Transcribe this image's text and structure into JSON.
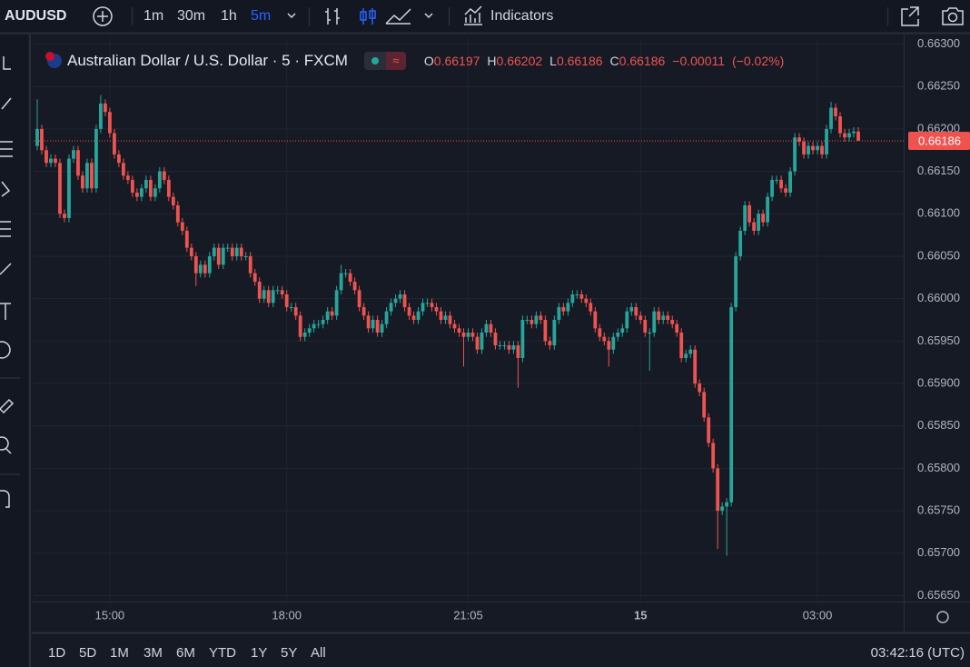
{
  "toolbar": {
    "symbol": "AUDUSD",
    "intervals": [
      "1m",
      "30m",
      "1h",
      "5m"
    ],
    "indicators": "Indicators"
  },
  "chart_data": {
    "type": "candlestick",
    "title": "Australian Dollar / U.S. Dollar · 5 · FXCM",
    "ohlc_labels": [
      "O",
      "H",
      "L",
      "C"
    ],
    "change": "−0.00011",
    "change_pct": "(−0.02%)",
    "up_color": "#26a69a",
    "down_color": "#ef5350",
    "grid": true,
    "categories": [
      null,
      null,
      null,
      null,
      null,
      null,
      null,
      null,
      null,
      null,
      null,
      null,
      null,
      null,
      null,
      null,
      "15:00",
      null,
      null,
      null,
      null,
      null,
      null,
      null,
      null,
      null,
      null,
      null,
      null,
      null,
      null,
      null,
      null,
      null,
      null,
      null,
      null,
      null,
      null,
      null,
      null,
      null,
      null,
      null,
      null,
      null,
      null,
      null,
      null,
      null,
      null,
      null,
      null,
      null,
      null,
      "18:00",
      null,
      null,
      null,
      null,
      null,
      null,
      null,
      null,
      null,
      null,
      null,
      null,
      null,
      null,
      null,
      null,
      null,
      null,
      null,
      null,
      null,
      null,
      null,
      null,
      null,
      null,
      null,
      null,
      null,
      null,
      null,
      null,
      null,
      null,
      null,
      null,
      null,
      null,
      null,
      "21:05",
      null,
      null,
      null,
      null,
      null,
      null,
      null,
      null,
      null,
      null,
      null,
      null,
      null,
      null,
      null,
      null,
      null,
      null,
      null,
      null,
      null,
      null,
      null,
      null,
      null,
      null,
      null,
      null,
      null,
      null,
      null,
      null,
      null,
      null,
      null,
      null,
      null,
      "15",
      null,
      null,
      null,
      null,
      null,
      null,
      null,
      null,
      null,
      null,
      null,
      null,
      null,
      null,
      null,
      null,
      null,
      null,
      null,
      null,
      null,
      null,
      null,
      null,
      null,
      null,
      null,
      null,
      null,
      null,
      null,
      null,
      null,
      null,
      null,
      null,
      null,
      null,
      "03:00",
      null,
      null,
      null,
      null,
      null,
      null,
      null,
      null,
      null
    ],
    "open": [
      0.6618,
      0.662,
      0.66175,
      0.6616,
      0.66165,
      0.6616,
      0.661,
      0.66095,
      0.66165,
      0.66175,
      0.66145,
      0.6613,
      0.6616,
      0.6613,
      0.662,
      0.6623,
      0.6622,
      0.66195,
      0.6617,
      0.6616,
      0.66145,
      0.6614,
      0.66125,
      0.6612,
      0.6613,
      0.6614,
      0.6612,
      0.6613,
      0.6615,
      0.6614,
      0.6612,
      0.6611,
      0.6609,
      0.6608,
      0.6606,
      0.6605,
      0.6603,
      0.6604,
      0.6603,
      0.6605,
      0.6606,
      0.6604,
      0.6606,
      0.6606,
      0.6605,
      0.6606,
      0.6605,
      0.6605,
      0.6603,
      0.6602,
      0.66,
      0.6601,
      0.65995,
      0.6601,
      0.6601,
      0.66005,
      0.6599,
      0.6599,
      0.6598,
      0.65955,
      0.6596,
      0.65965,
      0.6597,
      0.6597,
      0.65975,
      0.65985,
      0.6598,
      0.6601,
      0.6603,
      0.6603,
      0.6602,
      0.6601,
      0.6599,
      0.6598,
      0.65965,
      0.65975,
      0.6596,
      0.6597,
      0.65985,
      0.65995,
      0.66,
      0.66005,
      0.6599,
      0.6598,
      0.65975,
      0.65985,
      0.65995,
      0.65995,
      0.6599,
      0.65985,
      0.65975,
      0.6598,
      0.6597,
      0.65965,
      0.6596,
      0.65955,
      0.6596,
      0.65955,
      0.6594,
      0.6596,
      0.6597,
      0.6596,
      0.65945,
      0.65945,
      0.65945,
      0.6594,
      0.65945,
      0.6593,
      0.65975,
      0.65975,
      0.6597,
      0.6598,
      0.65975,
      0.6595,
      0.65945,
      0.65975,
      0.6599,
      0.65985,
      0.65995,
      0.66005,
      0.66005,
      0.66,
      0.65995,
      0.65985,
      0.65965,
      0.65955,
      0.6595,
      0.6594,
      0.65955,
      0.6596,
      0.65965,
      0.65985,
      0.6599,
      0.6598,
      0.65975,
      0.6596,
      0.6596,
      0.65985,
      0.65975,
      0.6598,
      0.65975,
      0.6597,
      0.6596,
      0.6593,
      0.65935,
      0.6594,
      0.659,
      0.6589,
      0.6586,
      0.6583,
      0.658,
      0.6575,
      0.65755,
      0.6576,
      0.6599,
      0.6605,
      0.6608,
      0.6611,
      0.6609,
      0.6608,
      0.661,
      0.6609,
      0.6612,
      0.6614,
      0.6614,
      0.6613,
      0.66125,
      0.6615,
      0.6619,
      0.66185,
      0.6617,
      0.6618,
      0.66175,
      0.6618,
      0.6617,
      0.662,
      0.66225,
      0.66215,
      0.66195,
      0.6619,
      0.66195,
      0.66197
    ],
    "high": [
      0.66235,
      0.66205,
      0.6618,
      0.6617,
      0.6617,
      0.66165,
      0.66105,
      0.6617,
      0.6618,
      0.6618,
      0.6615,
      0.66165,
      0.66165,
      0.66205,
      0.6624,
      0.66235,
      0.66225,
      0.662,
      0.66175,
      0.66165,
      0.6615,
      0.66145,
      0.6613,
      0.66135,
      0.66145,
      0.66145,
      0.66135,
      0.66155,
      0.66155,
      0.66145,
      0.66125,
      0.66115,
      0.66095,
      0.66085,
      0.66065,
      0.66055,
      0.66045,
      0.66045,
      0.66055,
      0.66065,
      0.66065,
      0.66065,
      0.66065,
      0.66065,
      0.66065,
      0.66065,
      0.66055,
      0.66055,
      0.66035,
      0.66025,
      0.66015,
      0.66015,
      0.66015,
      0.66015,
      0.66015,
      0.6601,
      0.65995,
      0.65995,
      0.65985,
      0.65965,
      0.6597,
      0.65975,
      0.65975,
      0.6598,
      0.6599,
      0.6599,
      0.66015,
      0.6604,
      0.66035,
      0.66035,
      0.66025,
      0.66015,
      0.65995,
      0.65985,
      0.6598,
      0.6598,
      0.65975,
      0.6599,
      0.66,
      0.66005,
      0.6601,
      0.6601,
      0.65995,
      0.65985,
      0.6599,
      0.66,
      0.66,
      0.66,
      0.65995,
      0.6599,
      0.65985,
      0.65985,
      0.65975,
      0.6597,
      0.65965,
      0.65965,
      0.65965,
      0.6596,
      0.65965,
      0.65975,
      0.65975,
      0.65965,
      0.6595,
      0.6595,
      0.6595,
      0.6595,
      0.6595,
      0.6598,
      0.6598,
      0.6598,
      0.65985,
      0.65985,
      0.6598,
      0.65955,
      0.6598,
      0.65995,
      0.65995,
      0.66,
      0.6601,
      0.6601,
      0.6601,
      0.66005,
      0.66,
      0.6599,
      0.6597,
      0.6596,
      0.65955,
      0.6596,
      0.65965,
      0.6597,
      0.6599,
      0.65995,
      0.65995,
      0.65985,
      0.6598,
      0.65965,
      0.6599,
      0.6599,
      0.65985,
      0.65985,
      0.6598,
      0.65975,
      0.65965,
      0.6594,
      0.65945,
      0.65945,
      0.65905,
      0.65895,
      0.65865,
      0.65835,
      0.65805,
      0.6576,
      0.65765,
      0.65995,
      0.66055,
      0.66085,
      0.66115,
      0.66115,
      0.66095,
      0.66105,
      0.66105,
      0.66125,
      0.66145,
      0.66145,
      0.66145,
      0.66135,
      0.66155,
      0.66195,
      0.66195,
      0.6619,
      0.66185,
      0.66185,
      0.66185,
      0.66185,
      0.66205,
      0.66232,
      0.6623,
      0.6622,
      0.662,
      0.662,
      0.66202,
      0.66202
    ],
    "low": [
      0.66175,
      0.6617,
      0.66155,
      0.66155,
      0.66155,
      0.66095,
      0.6609,
      0.6609,
      0.6616,
      0.6614,
      0.66125,
      0.66125,
      0.66125,
      0.66125,
      0.66195,
      0.66215,
      0.6619,
      0.66165,
      0.66155,
      0.6614,
      0.66135,
      0.6612,
      0.66115,
      0.66115,
      0.66125,
      0.66115,
      0.66115,
      0.66125,
      0.66135,
      0.66115,
      0.66105,
      0.66085,
      0.66075,
      0.66055,
      0.66045,
      0.66015,
      0.66025,
      0.66025,
      0.66025,
      0.66045,
      0.66035,
      0.66035,
      0.66055,
      0.66045,
      0.66045,
      0.66045,
      0.66045,
      0.66025,
      0.66015,
      0.65995,
      0.65995,
      0.6599,
      0.6599,
      0.66005,
      0.66,
      0.65985,
      0.65985,
      0.65975,
      0.6595,
      0.6595,
      0.65955,
      0.6596,
      0.65965,
      0.65965,
      0.6597,
      0.65975,
      0.65975,
      0.66005,
      0.66025,
      0.66015,
      0.66005,
      0.65985,
      0.65975,
      0.6596,
      0.6596,
      0.65955,
      0.65955,
      0.65965,
      0.6598,
      0.6599,
      0.65995,
      0.65985,
      0.65975,
      0.6597,
      0.6597,
      0.6598,
      0.6599,
      0.65985,
      0.6598,
      0.6597,
      0.6597,
      0.65965,
      0.6596,
      0.65955,
      0.6592,
      0.6595,
      0.6595,
      0.65935,
      0.65935,
      0.65955,
      0.65955,
      0.6594,
      0.6594,
      0.6594,
      0.65935,
      0.65935,
      0.65895,
      0.65925,
      0.6597,
      0.65965,
      0.65965,
      0.6597,
      0.65945,
      0.6594,
      0.6594,
      0.6597,
      0.6598,
      0.6598,
      0.6599,
      0.66,
      0.65995,
      0.6599,
      0.6598,
      0.6596,
      0.6595,
      0.65945,
      0.6592,
      0.65935,
      0.6595,
      0.65955,
      0.6596,
      0.6598,
      0.65975,
      0.6597,
      0.65955,
      0.65915,
      0.65955,
      0.6597,
      0.6597,
      0.6597,
      0.65965,
      0.65955,
      0.65925,
      0.65925,
      0.6593,
      0.65895,
      0.65885,
      0.65855,
      0.65825,
      0.65795,
      0.65705,
      0.65745,
      0.65697,
      0.65755,
      0.65985,
      0.66045,
      0.66075,
      0.66085,
      0.66075,
      0.66075,
      0.66085,
      0.66085,
      0.66115,
      0.66135,
      0.66125,
      0.6612,
      0.6612,
      0.66145,
      0.6618,
      0.66165,
      0.66165,
      0.6617,
      0.6617,
      0.66165,
      0.66165,
      0.66195,
      0.6621,
      0.6619,
      0.66185,
      0.66185,
      0.6619,
      0.66186
    ],
    "close": [
      0.662,
      0.66175,
      0.6616,
      0.66165,
      0.6616,
      0.661,
      0.66095,
      0.66165,
      0.66175,
      0.66145,
      0.6613,
      0.6616,
      0.6613,
      0.662,
      0.6623,
      0.6622,
      0.66195,
      0.6617,
      0.6616,
      0.66145,
      0.6614,
      0.66125,
      0.6612,
      0.6613,
      0.6614,
      0.6612,
      0.6613,
      0.6615,
      0.6614,
      0.6612,
      0.6611,
      0.6609,
      0.6608,
      0.6606,
      0.6605,
      0.6603,
      0.6604,
      0.6603,
      0.6605,
      0.6606,
      0.6604,
      0.6606,
      0.6606,
      0.6605,
      0.6606,
      0.6605,
      0.6605,
      0.6603,
      0.6602,
      0.66,
      0.6601,
      0.65995,
      0.6601,
      0.6601,
      0.66005,
      0.6599,
      0.6599,
      0.6598,
      0.65955,
      0.6596,
      0.65965,
      0.6597,
      0.6597,
      0.65975,
      0.65985,
      0.6598,
      0.6601,
      0.6603,
      0.6603,
      0.6602,
      0.6601,
      0.6599,
      0.6598,
      0.65965,
      0.65975,
      0.6596,
      0.6597,
      0.65985,
      0.65995,
      0.66,
      0.66005,
      0.6599,
      0.6598,
      0.65975,
      0.65985,
      0.65995,
      0.65995,
      0.6599,
      0.65985,
      0.65975,
      0.6598,
      0.6597,
      0.65965,
      0.6596,
      0.65955,
      0.6596,
      0.65955,
      0.6594,
      0.6596,
      0.6597,
      0.6596,
      0.65945,
      0.65945,
      0.65945,
      0.6594,
      0.65945,
      0.6593,
      0.65975,
      0.65975,
      0.6597,
      0.6598,
      0.65975,
      0.6595,
      0.65945,
      0.65975,
      0.6599,
      0.65985,
      0.65995,
      0.66005,
      0.66005,
      0.66,
      0.65995,
      0.65985,
      0.65965,
      0.65955,
      0.6595,
      0.6594,
      0.65955,
      0.6596,
      0.65965,
      0.65985,
      0.6599,
      0.6598,
      0.65975,
      0.6596,
      0.6596,
      0.65985,
      0.65975,
      0.6598,
      0.65975,
      0.6597,
      0.6596,
      0.6593,
      0.65935,
      0.6594,
      0.659,
      0.6589,
      0.6586,
      0.6583,
      0.658,
      0.6575,
      0.65755,
      0.6576,
      0.6599,
      0.6605,
      0.6608,
      0.6611,
      0.6609,
      0.6608,
      0.661,
      0.6609,
      0.6612,
      0.6614,
      0.6614,
      0.6613,
      0.66125,
      0.6615,
      0.6619,
      0.66185,
      0.6617,
      0.6618,
      0.66175,
      0.6618,
      0.6617,
      0.662,
      0.66225,
      0.66215,
      0.66195,
      0.6619,
      0.66195,
      0.66197,
      0.66186
    ],
    "ylim": [
      0.65643,
      0.66307
    ],
    "yticks": [
      {
        "value": 0.663,
        "label": "0.66300"
      },
      {
        "value": 0.6625,
        "label": "0.66250"
      },
      {
        "value": 0.662,
        "label": "0.66200"
      },
      {
        "value": 0.6615,
        "label": "0.66150"
      },
      {
        "value": 0.661,
        "label": "0.66100"
      },
      {
        "value": 0.6605,
        "label": "0.66050"
      },
      {
        "value": 0.66,
        "label": "0.66000"
      },
      {
        "value": 0.6595,
        "label": "0.65950"
      },
      {
        "value": 0.659,
        "label": "0.65900"
      },
      {
        "value": 0.6585,
        "label": "0.65850"
      },
      {
        "value": 0.658,
        "label": "0.65800"
      },
      {
        "value": 0.6575,
        "label": "0.65750"
      },
      {
        "value": 0.657,
        "label": "0.65700"
      },
      {
        "value": 0.6565,
        "label": "0.65650"
      }
    ]
  },
  "range_bar": {
    "ranges": [
      "1D",
      "5D",
      "1M",
      "3M",
      "6M",
      "YTD",
      "1Y",
      "5Y",
      "All"
    ],
    "clock": "03:42:16 (UTC)"
  }
}
